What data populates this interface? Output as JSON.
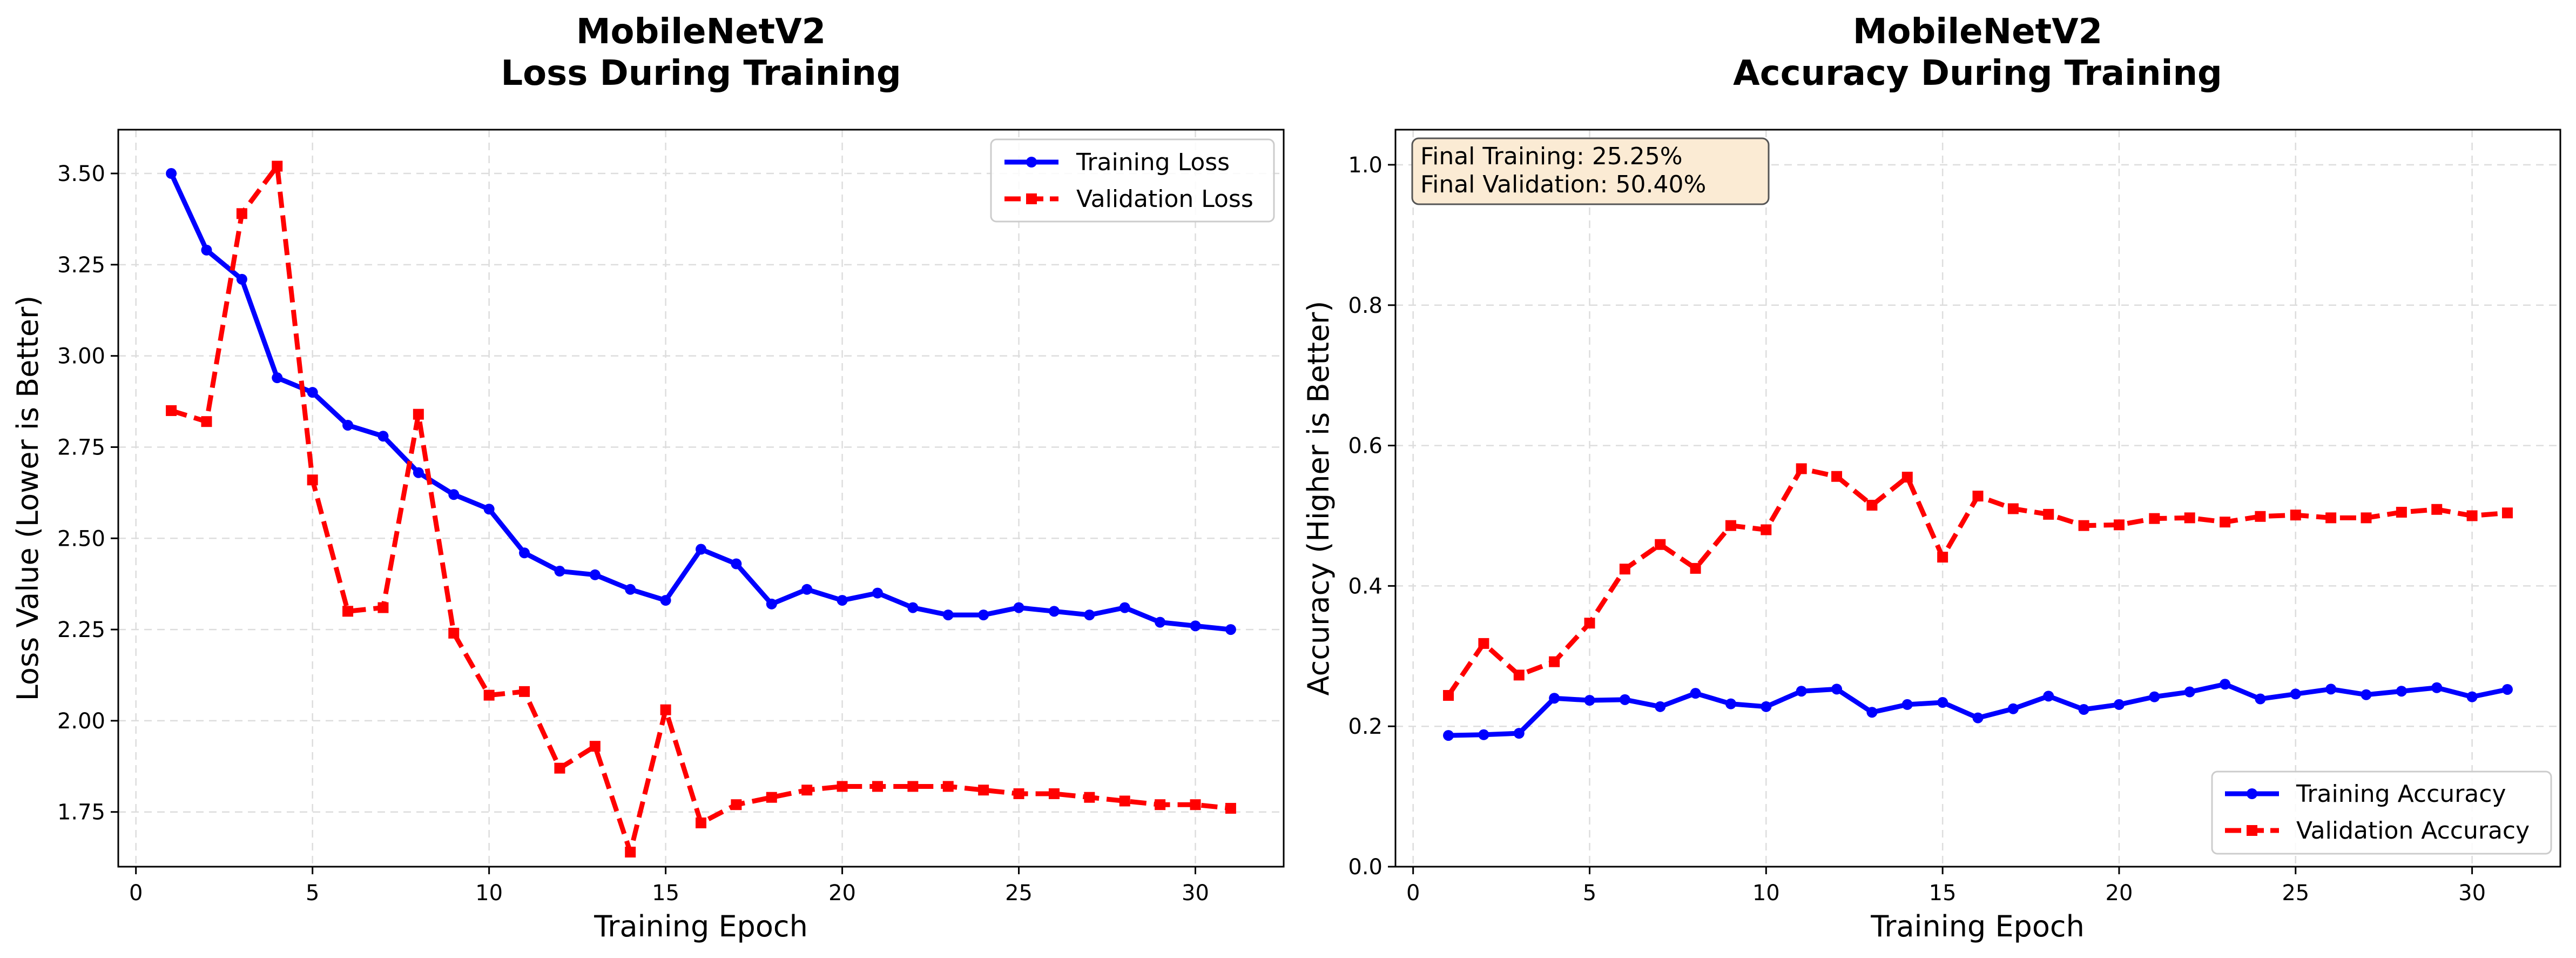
{
  "chart_data": [
    {
      "type": "line",
      "title_line1": "MobileNetV2",
      "title_line2": "Loss During Training",
      "xlabel": "Training Epoch",
      "ylabel": "Loss Value (Lower is Better)",
      "xlim": [
        -0.5,
        32.5
      ],
      "ylim": [
        1.6,
        3.62
      ],
      "xticks": [
        0,
        5,
        10,
        15,
        20,
        25,
        30
      ],
      "yticks": [
        1.75,
        2.0,
        2.25,
        2.5,
        2.75,
        3.0,
        3.25,
        3.5
      ],
      "ytick_labels": [
        "1.75",
        "2.00",
        "2.25",
        "2.50",
        "2.75",
        "3.00",
        "3.25",
        "3.50"
      ],
      "grid": true,
      "legend_position": "top-right",
      "x": [
        1,
        2,
        3,
        4,
        5,
        6,
        7,
        8,
        9,
        10,
        11,
        12,
        13,
        14,
        15,
        16,
        17,
        18,
        19,
        20,
        21,
        22,
        23,
        24,
        25,
        26,
        27,
        28,
        29,
        30,
        31
      ],
      "series": [
        {
          "name": "Training Loss",
          "color": "#0000ff",
          "style": "solid",
          "marker": "circle",
          "values": [
            3.5,
            3.29,
            3.21,
            2.94,
            2.9,
            2.81,
            2.78,
            2.68,
            2.62,
            2.58,
            2.46,
            2.41,
            2.4,
            2.36,
            2.33,
            2.47,
            2.43,
            2.32,
            2.36,
            2.33,
            2.35,
            2.31,
            2.29,
            2.29,
            2.31,
            2.3,
            2.29,
            2.31,
            2.27,
            2.26,
            2.25
          ]
        },
        {
          "name": "Validation Loss",
          "color": "#ff0000",
          "style": "dashed",
          "marker": "square",
          "values": [
            2.85,
            2.82,
            3.39,
            3.52,
            2.66,
            2.3,
            2.31,
            2.84,
            2.24,
            2.07,
            2.08,
            1.87,
            1.93,
            1.64,
            2.03,
            1.72,
            1.77,
            1.79,
            1.81,
            1.82,
            1.82,
            1.82,
            1.82,
            1.81,
            1.8,
            1.8,
            1.79,
            1.78,
            1.77,
            1.77,
            1.76
          ]
        }
      ]
    },
    {
      "type": "line",
      "title_line1": "MobileNetV2",
      "title_line2": "Accuracy During Training",
      "xlabel": "Training Epoch",
      "ylabel": "Accuracy (Higher is Better)",
      "xlim": [
        -0.5,
        32.5
      ],
      "ylim": [
        0,
        1.05
      ],
      "xticks": [
        0,
        5,
        10,
        15,
        20,
        25,
        30
      ],
      "yticks": [
        0.0,
        0.2,
        0.4,
        0.6,
        0.8,
        1.0
      ],
      "ytick_labels": [
        "0.0",
        "0.2",
        "0.4",
        "0.6",
        "0.8",
        "1.0"
      ],
      "grid": true,
      "legend_position": "bottom-right",
      "annotation": {
        "line1": "Final Training: 25.25%",
        "line2": "Final Validation: 50.40%",
        "bg": "#fbebd4"
      },
      "x": [
        1,
        2,
        3,
        4,
        5,
        6,
        7,
        8,
        9,
        10,
        11,
        12,
        13,
        14,
        15,
        16,
        17,
        18,
        19,
        20,
        21,
        22,
        23,
        24,
        25,
        26,
        27,
        28,
        29,
        30,
        31
      ],
      "series": [
        {
          "name": "Training Accuracy",
          "color": "#0000ff",
          "style": "solid",
          "marker": "circle",
          "values": [
            0.187,
            0.188,
            0.19,
            0.24,
            0.237,
            0.238,
            0.228,
            0.247,
            0.232,
            0.228,
            0.25,
            0.253,
            0.22,
            0.231,
            0.234,
            0.212,
            0.225,
            0.243,
            0.224,
            0.231,
            0.242,
            0.249,
            0.26,
            0.239,
            0.246,
            0.253,
            0.245,
            0.25,
            0.255,
            0.242,
            0.2525
          ]
        },
        {
          "name": "Validation Accuracy",
          "color": "#ff0000",
          "style": "dashed",
          "marker": "square",
          "values": [
            0.244,
            0.318,
            0.273,
            0.292,
            0.347,
            0.424,
            0.459,
            0.425,
            0.486,
            0.48,
            0.567,
            0.556,
            0.515,
            0.555,
            0.441,
            0.528,
            0.51,
            0.502,
            0.486,
            0.487,
            0.496,
            0.497,
            0.491,
            0.499,
            0.501,
            0.497,
            0.497,
            0.505,
            0.509,
            0.5,
            0.504
          ]
        }
      ]
    }
  ]
}
